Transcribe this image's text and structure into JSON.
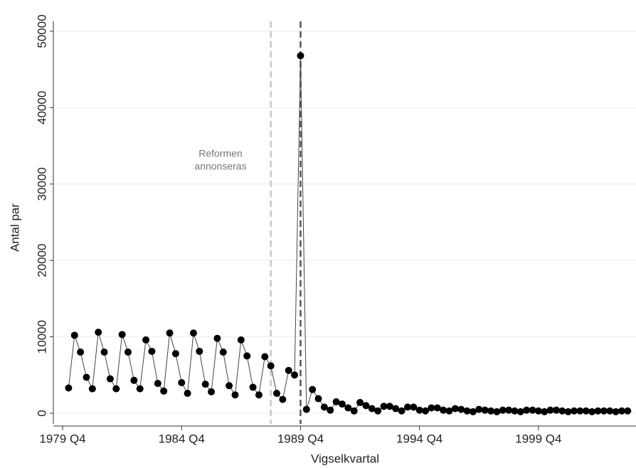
{
  "chart_data": {
    "type": "line",
    "xlabel": "Vigselkvartal",
    "ylabel": "Antal par",
    "annotation": [
      "Reformen",
      "annonseras"
    ],
    "x": [
      1980,
      1980.25,
      1980.5,
      1980.75,
      1981,
      1981.25,
      1981.5,
      1981.75,
      1982,
      1982.25,
      1982.5,
      1982.75,
      1983,
      1983.25,
      1983.5,
      1983.75,
      1984,
      1984.25,
      1984.5,
      1984.75,
      1985,
      1985.25,
      1985.5,
      1985.75,
      1986,
      1986.25,
      1986.5,
      1986.75,
      1987,
      1987.25,
      1987.5,
      1987.75,
      1988,
      1988.25,
      1988.5,
      1988.75,
      1989,
      1989.25,
      1989.5,
      1989.75,
      1990,
      1990.25,
      1990.5,
      1990.75,
      1991,
      1991.25,
      1991.5,
      1991.75,
      1992,
      1992.25,
      1992.5,
      1992.75,
      1993,
      1993.25,
      1993.5,
      1993.75,
      1994,
      1994.25,
      1994.5,
      1994.75,
      1995,
      1995.25,
      1995.5,
      1995.75,
      1996,
      1996.25,
      1996.5,
      1996.75,
      1997,
      1997.25,
      1997.5,
      1997.75,
      1998,
      1998.25,
      1998.5,
      1998.75,
      1999,
      1999.25,
      1999.5,
      1999.75,
      2000,
      2000.25,
      2000.5,
      2000.75,
      2001,
      2001.25,
      2001.5,
      2001.75,
      2002,
      2002.25,
      2002.5,
      2002.75,
      2003,
      2003.25,
      2003.5
    ],
    "series": [
      {
        "color": "#444444",
        "marker_color": "#000000",
        "values": [
          3300,
          10200,
          8000,
          4700,
          3200,
          10600,
          8000,
          4500,
          3200,
          10300,
          8000,
          4300,
          3200,
          9600,
          8100,
          3900,
          2900,
          10500,
          7800,
          4000,
          2600,
          10500,
          8100,
          3800,
          2800,
          9800,
          8000,
          3600,
          2400,
          9600,
          7500,
          3400,
          2400,
          7400,
          6200,
          2600,
          1800,
          5600,
          5000,
          46800,
          500,
          3100,
          1900,
          800,
          400,
          1500,
          1200,
          700,
          300,
          1400,
          1000,
          600,
          300,
          900,
          900,
          600,
          300,
          800,
          800,
          400,
          300,
          700,
          700,
          400,
          300,
          600,
          500,
          300,
          200,
          500,
          400,
          300,
          200,
          400,
          400,
          300,
          200,
          400,
          400,
          300,
          200,
          400,
          400,
          300,
          200,
          300,
          300,
          300,
          200,
          300,
          300,
          300,
          200,
          300,
          300
        ]
      }
    ],
    "vlines": [
      {
        "x": 1988.5,
        "color": "#c8c8c8"
      },
      {
        "x": 1989.75,
        "color": "#555555"
      }
    ],
    "xlim": [
      1979.45,
      2003.85
    ],
    "ylim": [
      -1400,
      51300
    ],
    "xticks": [
      {
        "value": 1979.75,
        "label": "1979 Q4"
      },
      {
        "value": 1984.75,
        "label": "1984 Q4"
      },
      {
        "value": 1989.75,
        "label": "1989 Q4"
      },
      {
        "value": 1994.75,
        "label": "1994 Q4"
      },
      {
        "value": 1999.75,
        "label": "1999 Q4"
      }
    ],
    "yticks": [
      0,
      10000,
      20000,
      30000,
      40000,
      50000
    ],
    "grid": true,
    "grid_color": "#e6eef1"
  }
}
